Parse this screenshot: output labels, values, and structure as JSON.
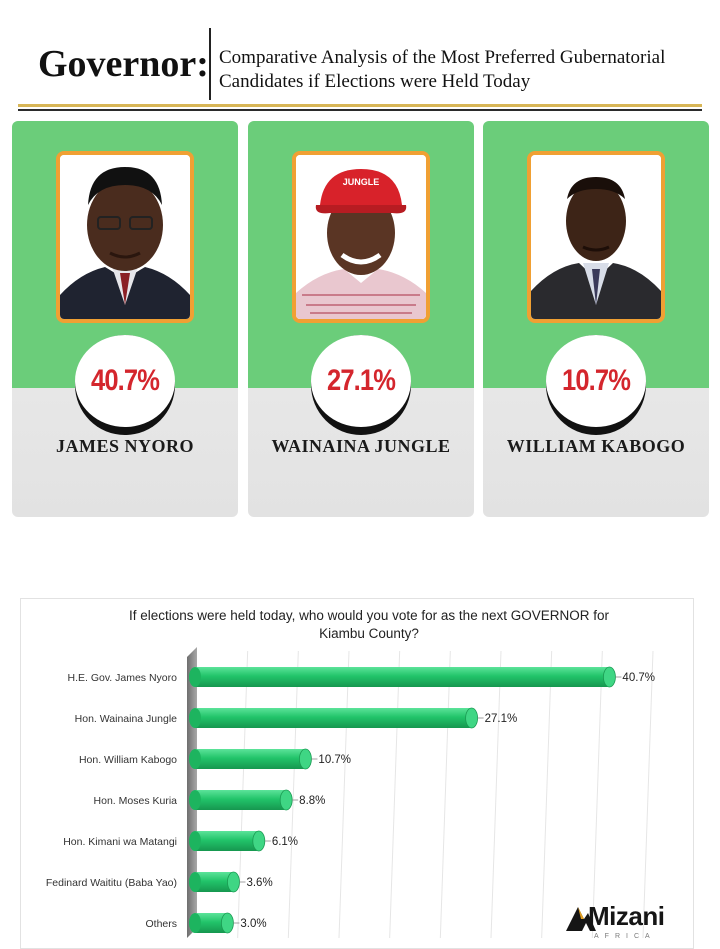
{
  "header": {
    "title": "Governor:",
    "subtitle_line1": "Comparative Analysis of the Most Preferred Gubernatorial",
    "subtitle_line2": "Candidates if Elections were Held Today"
  },
  "cards": [
    {
      "name": "JAMES NYORO",
      "percent": "40.7%"
    },
    {
      "name": "WAINAINA JUNGLE",
      "percent": "27.1%",
      "cap_text": "JUNGLE"
    },
    {
      "name": "WILLIAM KABOGO",
      "percent": "10.7%"
    }
  ],
  "colors": {
    "card_green": "#6bcd7a",
    "bar_green": "#22c46a",
    "percent_red": "#d4262d",
    "photo_frame": "#f0a033",
    "rule_gold": "#d8b657"
  },
  "chart_data": {
    "type": "bar",
    "orientation": "horizontal",
    "title_line1": "If elections were held today, who would you vote for as the next GOVERNOR for",
    "title_line2": "Kiambu County?",
    "categories": [
      "H.E. Gov. James Nyoro",
      "Hon. Wainaina Jungle",
      "Hon. William Kabogo",
      "Hon. Moses Kuria",
      "Hon. Kimani wa Matangi",
      "Fedinard Waititu (Baba Yao)",
      "Others"
    ],
    "values": [
      40.7,
      27.1,
      10.7,
      8.8,
      6.1,
      3.6,
      3.0
    ],
    "value_labels": [
      "40.7%",
      "27.1%",
      "10.7%",
      "8.8%",
      "6.1%",
      "3.6%",
      "3.0%"
    ],
    "xlim": [
      0,
      45
    ],
    "grid": true,
    "legend": "none"
  },
  "logo": {
    "text": "Mizani",
    "sub": "AFRICA"
  }
}
